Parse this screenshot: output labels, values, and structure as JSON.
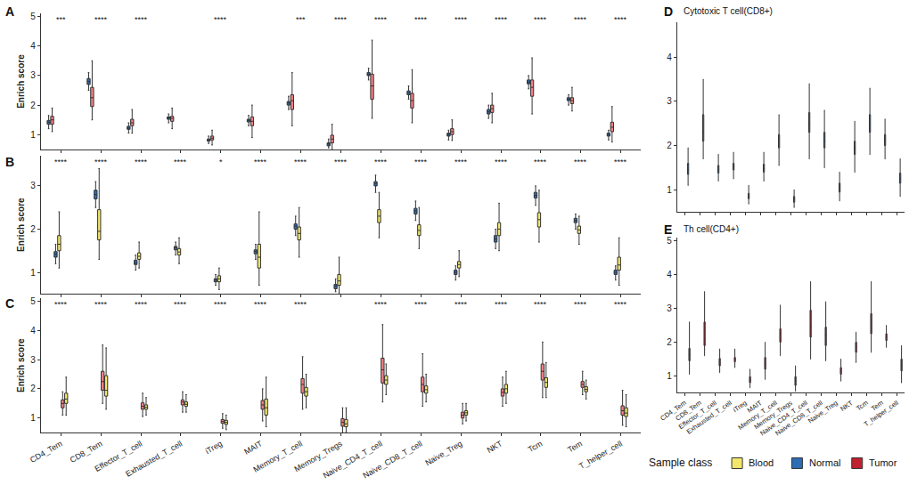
{
  "chart_data": [
    {
      "type": "box",
      "title": "A",
      "y_label": "Enrich score",
      "categories": [
        "CD4_Tem",
        "CD8_Tem",
        "Effector_T_cell",
        "Exhausted_T_cell",
        "iTreg",
        "MAIT",
        "Memory_T_cell",
        "Memory_Tregs",
        "Naive_CD4_T_cell",
        "Naive_CD8_T_cell",
        "Naive_Treg",
        "NKT",
        "Tcm",
        "Tem",
        "T_helper_cell"
      ],
      "annotations": [
        "***",
        "****",
        "****",
        null,
        "****",
        null,
        "***",
        "****",
        "****",
        "****",
        "****",
        "****",
        "****",
        "****",
        "****"
      ],
      "ylim": [
        0.5,
        5.1
      ],
      "yticks": [
        1,
        2,
        3,
        4,
        5
      ],
      "tick_labels": "y",
      "series": [
        {
          "name": "Normal",
          "color": "#2E6CB3",
          "q1": [
            1.35,
            2.7,
            1.18,
            1.52,
            0.78,
            1.43,
            2.0,
            0.62,
            3.0,
            2.35,
            0.95,
            1.7,
            2.72,
            2.15,
            0.95
          ],
          "median": [
            1.42,
            2.8,
            1.22,
            1.57,
            0.82,
            1.48,
            2.07,
            0.68,
            3.05,
            2.42,
            1.0,
            1.77,
            2.78,
            2.2,
            1.0
          ],
          "q3": [
            1.48,
            2.9,
            1.28,
            1.6,
            0.85,
            1.52,
            2.12,
            0.72,
            3.1,
            2.48,
            1.05,
            1.85,
            2.85,
            2.25,
            1.05
          ],
          "lower": [
            1.2,
            2.5,
            1.05,
            1.4,
            0.7,
            1.3,
            1.85,
            0.55,
            2.85,
            2.2,
            0.82,
            1.55,
            2.55,
            2.0,
            0.82
          ],
          "upper": [
            1.65,
            3.1,
            1.4,
            1.7,
            0.95,
            1.65,
            2.3,
            0.85,
            3.25,
            2.65,
            1.15,
            2.0,
            3.0,
            2.35,
            1.15
          ]
        },
        {
          "name": "Tumor",
          "color": "#F07F84",
          "q1": [
            1.35,
            1.95,
            1.3,
            1.45,
            0.82,
            1.3,
            1.85,
            0.72,
            2.2,
            1.9,
            1.0,
            1.75,
            2.3,
            2.05,
            1.1
          ],
          "median": [
            1.5,
            2.25,
            1.4,
            1.55,
            0.88,
            1.45,
            2.15,
            0.85,
            2.65,
            2.15,
            1.1,
            1.88,
            2.6,
            2.15,
            1.25
          ],
          "q3": [
            1.62,
            2.6,
            1.52,
            1.62,
            0.95,
            1.6,
            2.35,
            0.98,
            3.05,
            2.4,
            1.2,
            2.0,
            2.85,
            2.25,
            1.42
          ],
          "lower": [
            1.1,
            1.5,
            1.05,
            1.2,
            0.65,
            0.9,
            1.3,
            0.5,
            1.55,
            1.4,
            0.8,
            1.4,
            1.7,
            1.8,
            0.75
          ],
          "upper": [
            1.9,
            3.5,
            1.85,
            1.9,
            1.15,
            2.0,
            3.1,
            1.35,
            4.2,
            3.2,
            1.5,
            2.4,
            3.6,
            2.6,
            1.95
          ]
        }
      ]
    },
    {
      "type": "box",
      "title": "B",
      "y_label": "Enrich score",
      "categories": [
        "CD4_Tem",
        "CD8_Tem",
        "Effector_T_cell",
        "Exhausted_T_cell",
        "iTreg",
        "MAIT",
        "Memory_T_cell",
        "Memory_Tregs",
        "Naive_CD4_T_cell",
        "Naive_CD8_T_cell",
        "Naive_Treg",
        "NKT",
        "Tcm",
        "Tem",
        "T_helper_cell"
      ],
      "annotations": [
        "****",
        "****",
        "****",
        "****",
        "*",
        "****",
        "****",
        "****",
        "****",
        "****",
        "****",
        "****",
        "****",
        "****",
        "****"
      ],
      "ylim": [
        0.5,
        3.7
      ],
      "yticks": [
        1,
        2,
        3
      ],
      "tick_labels": "y",
      "series": [
        {
          "name": "Normal",
          "color": "#2E6CB3",
          "q1": [
            1.35,
            2.7,
            1.18,
            1.52,
            0.78,
            1.43,
            2.0,
            0.62,
            3.0,
            2.35,
            0.95,
            1.7,
            2.72,
            2.15,
            0.95
          ],
          "median": [
            1.42,
            2.8,
            1.22,
            1.57,
            0.82,
            1.48,
            2.07,
            0.68,
            3.05,
            2.42,
            1.0,
            1.77,
            2.78,
            2.2,
            1.0
          ],
          "q3": [
            1.48,
            2.9,
            1.28,
            1.6,
            0.85,
            1.52,
            2.12,
            0.72,
            3.1,
            2.48,
            1.05,
            1.85,
            2.85,
            2.25,
            1.05
          ],
          "lower": [
            1.2,
            2.5,
            1.05,
            1.4,
            0.7,
            1.3,
            1.85,
            0.55,
            2.85,
            2.2,
            0.82,
            1.55,
            2.55,
            2.0,
            0.82
          ],
          "upper": [
            1.65,
            3.1,
            1.4,
            1.7,
            0.95,
            1.65,
            2.3,
            0.85,
            3.25,
            2.65,
            1.15,
            2.0,
            3.0,
            2.35,
            1.15
          ]
        },
        {
          "name": "Blood",
          "color": "#F3E66B",
          "q1": [
            1.5,
            1.75,
            1.3,
            1.4,
            0.78,
            1.1,
            1.75,
            0.7,
            2.15,
            1.85,
            1.1,
            1.85,
            2.05,
            1.9,
            1.05
          ],
          "median": [
            1.65,
            1.95,
            1.37,
            1.47,
            0.85,
            1.35,
            1.9,
            0.8,
            2.3,
            1.97,
            1.18,
            2.0,
            2.22,
            1.98,
            1.17
          ],
          "q3": [
            1.85,
            2.45,
            1.45,
            1.55,
            0.92,
            1.65,
            2.05,
            0.95,
            2.45,
            2.1,
            1.25,
            2.15,
            2.38,
            2.07,
            1.35
          ],
          "lower": [
            1.1,
            1.3,
            1.1,
            1.2,
            0.6,
            0.7,
            1.35,
            0.5,
            1.8,
            1.55,
            0.9,
            1.5,
            1.7,
            1.65,
            0.7
          ],
          "upper": [
            2.4,
            3.4,
            1.7,
            1.8,
            1.1,
            2.4,
            2.5,
            1.35,
            2.85,
            2.5,
            1.5,
            2.6,
            2.9,
            2.3,
            1.8
          ]
        }
      ]
    },
    {
      "type": "box",
      "title": "C",
      "y_label": "Enrich score",
      "categories": [
        "CD4_Tem",
        "CD8_Tem",
        "Effector_T_cell",
        "Exhausted_T_cell",
        "iTreg",
        "MAIT",
        "Memory_T_cell",
        "Memory_Tregs",
        "Naive_CD4_T_cell",
        "Naive_CD8_T_cell",
        "Naive_Treg",
        "NKT",
        "Tcm",
        "Tem",
        "T_helper_cell"
      ],
      "annotations": [
        "****",
        "****",
        "****",
        "****",
        "****",
        "****",
        "****",
        null,
        "****",
        "****",
        "****",
        "****",
        "****",
        "****",
        "****"
      ],
      "ylim": [
        0.5,
        5.1
      ],
      "yticks": [
        1,
        2,
        3,
        4,
        5
      ],
      "series": [
        {
          "name": "Tumor",
          "color": "#F07F84",
          "q1": [
            1.35,
            1.95,
            1.3,
            1.45,
            0.82,
            1.3,
            1.85,
            0.72,
            2.2,
            1.9,
            1.0,
            1.75,
            2.3,
            2.05,
            1.1
          ],
          "median": [
            1.5,
            2.25,
            1.4,
            1.55,
            0.88,
            1.45,
            2.15,
            0.85,
            2.65,
            2.15,
            1.1,
            1.88,
            2.6,
            2.15,
            1.25
          ],
          "q3": [
            1.62,
            2.6,
            1.52,
            1.62,
            0.95,
            1.6,
            2.35,
            0.98,
            3.05,
            2.4,
            1.2,
            2.0,
            2.85,
            2.25,
            1.42
          ],
          "lower": [
            1.1,
            1.5,
            1.05,
            1.2,
            0.65,
            0.9,
            1.3,
            0.5,
            1.55,
            1.4,
            0.8,
            1.4,
            1.7,
            1.8,
            0.75
          ],
          "upper": [
            1.9,
            3.5,
            1.85,
            1.9,
            1.15,
            2.0,
            3.1,
            1.35,
            4.2,
            3.2,
            1.5,
            2.4,
            3.6,
            2.6,
            1.95
          ]
        },
        {
          "name": "Blood",
          "color": "#F3E66B",
          "q1": [
            1.5,
            1.75,
            1.3,
            1.4,
            0.78,
            1.1,
            1.75,
            0.7,
            2.15,
            1.85,
            1.1,
            1.85,
            2.05,
            1.9,
            1.05
          ],
          "median": [
            1.65,
            1.95,
            1.37,
            1.47,
            0.85,
            1.35,
            1.9,
            0.8,
            2.3,
            1.97,
            1.18,
            2.0,
            2.22,
            1.98,
            1.17
          ],
          "q3": [
            1.85,
            2.45,
            1.45,
            1.55,
            0.92,
            1.65,
            2.05,
            0.95,
            2.45,
            2.1,
            1.25,
            2.15,
            2.38,
            2.07,
            1.35
          ],
          "lower": [
            1.1,
            1.3,
            1.1,
            1.2,
            0.6,
            0.7,
            1.35,
            0.5,
            1.8,
            1.55,
            0.9,
            1.5,
            1.7,
            1.65,
            0.7
          ],
          "upper": [
            2.4,
            3.4,
            1.7,
            1.8,
            1.1,
            2.4,
            2.5,
            1.35,
            2.85,
            2.5,
            1.5,
            2.6,
            2.9,
            2.3,
            1.8
          ]
        }
      ]
    },
    {
      "type": "box",
      "title": "D",
      "subtitle": "Cytotoxic T cell(CD8+)",
      "categories": [
        "CD4_Tem",
        "CD8_Tem",
        "Effector_T_cell",
        "Exhausted_T_cell",
        "iTreg",
        "MAIT",
        "Memory_T_cell",
        "Memory_Tregs",
        "Naive_CD4_T_cell",
        "Naive_CD8_T_cell",
        "Naive_Treg",
        "NKT",
        "Tcm",
        "Tem",
        "T_helper_cell"
      ],
      "ylim": [
        0.5,
        4.8
      ],
      "yticks": [
        1,
        2,
        3,
        4
      ],
      "tick_labels": "y",
      "series": [
        {
          "name": "Normal",
          "color": "#4A86C3",
          "q1": [
            1.35,
            2.1,
            1.38,
            1.45,
            0.8,
            1.4,
            1.95,
            0.72,
            2.3,
            1.95,
            0.95,
            1.8,
            2.3,
            2.0,
            1.15
          ],
          "median": [
            1.45,
            2.3,
            1.45,
            1.52,
            0.85,
            1.48,
            2.1,
            0.78,
            2.5,
            2.1,
            1.05,
            1.95,
            2.5,
            2.12,
            1.25
          ],
          "q3": [
            1.6,
            2.7,
            1.55,
            1.6,
            0.92,
            1.58,
            2.25,
            0.85,
            2.75,
            2.3,
            1.15,
            2.1,
            2.7,
            2.25,
            1.38
          ],
          "lower": [
            1.1,
            1.7,
            1.2,
            1.25,
            0.68,
            1.2,
            1.55,
            0.6,
            1.7,
            1.5,
            0.75,
            1.4,
            1.8,
            1.7,
            0.85
          ],
          "upper": [
            1.95,
            3.5,
            1.8,
            1.85,
            1.1,
            1.85,
            2.7,
            1.0,
            3.4,
            2.8,
            1.4,
            2.55,
            3.3,
            2.6,
            1.7
          ]
        }
      ]
    },
    {
      "type": "box",
      "title": "E",
      "subtitle": "Th cell(CD4+)",
      "categories": [
        "CD4_Tem",
        "CD8_Tem",
        "Effector_T_cell",
        "Exhausted_T_cell",
        "iTreg",
        "MAIT",
        "Memory_T_cell",
        "Memory_Tregs",
        "Naive_CD4_T_cell",
        "Naive_CD8_T_cell",
        "Naive_Treg",
        "NKT",
        "Tcm",
        "Tem",
        "T_helper_cell"
      ],
      "ylim": [
        0.5,
        5.1
      ],
      "yticks": [
        1,
        2,
        3,
        4,
        5
      ],
      "series": [
        {
          "name": "Tumor",
          "color": "#A11D28",
          "q1": [
            1.45,
            1.9,
            1.3,
            1.42,
            0.8,
            1.2,
            2.0,
            0.72,
            2.15,
            1.9,
            1.05,
            1.7,
            2.25,
            2.05,
            1.15
          ],
          "median": [
            1.62,
            2.1,
            1.4,
            1.5,
            0.88,
            1.35,
            2.25,
            0.85,
            2.45,
            2.2,
            1.15,
            1.85,
            2.5,
            2.15,
            1.3
          ],
          "q3": [
            1.82,
            2.6,
            1.52,
            1.55,
            0.98,
            1.55,
            2.4,
            0.98,
            2.95,
            2.45,
            1.25,
            2.0,
            2.85,
            2.25,
            1.5
          ],
          "lower": [
            1.05,
            1.6,
            1.1,
            1.25,
            0.65,
            0.9,
            1.6,
            0.55,
            1.5,
            1.45,
            0.85,
            1.4,
            1.7,
            1.85,
            0.8
          ],
          "upper": [
            2.6,
            3.5,
            1.8,
            1.8,
            1.2,
            2.0,
            3.1,
            1.3,
            3.8,
            3.2,
            1.5,
            2.3,
            3.8,
            2.5,
            1.9
          ]
        }
      ]
    }
  ],
  "figure_legend": {
    "title": "Sample class",
    "entries": [
      {
        "name": "Blood",
        "color": "#F3E66B"
      },
      {
        "name": "Normal",
        "color": "#2E6CB3"
      },
      {
        "name": "Tumor",
        "color": "#C1202F"
      }
    ]
  }
}
